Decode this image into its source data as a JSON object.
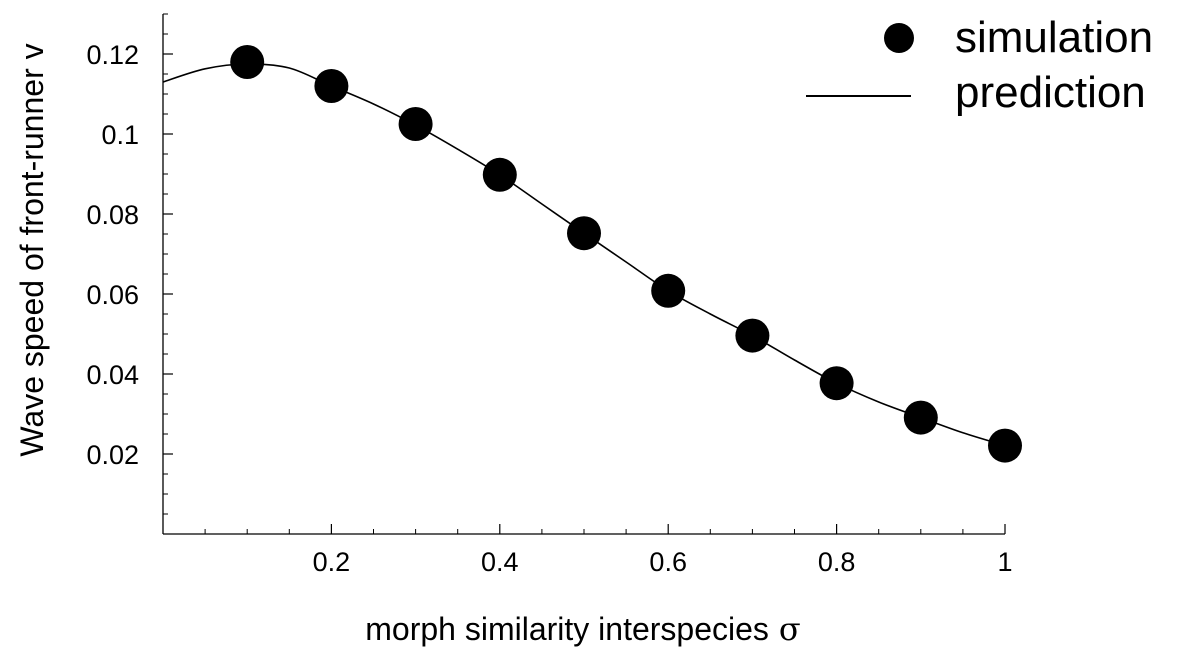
{
  "chart_data": {
    "type": "scatter",
    "title": "",
    "xlabel": "morph similarity interspecies",
    "xlabel_symbol": "σ",
    "ylabel": "Wave speed of front-runner v",
    "xlim": [
      0,
      1
    ],
    "ylim": [
      0,
      0.13
    ],
    "x_ticks": [
      {
        "value": 0.2,
        "label": "0.2"
      },
      {
        "value": 0.4,
        "label": "0.4"
      },
      {
        "value": 0.6,
        "label": "0.6"
      },
      {
        "value": 0.8,
        "label": "0.8"
      },
      {
        "value": 1.0,
        "label": "1"
      }
    ],
    "x_minor_step": 0.05,
    "y_ticks": [
      {
        "value": 0.02,
        "label": "0.02"
      },
      {
        "value": 0.04,
        "label": "0.04"
      },
      {
        "value": 0.06,
        "label": "0.06"
      },
      {
        "value": 0.08,
        "label": "0.08"
      },
      {
        "value": 0.1,
        "label": "0.1"
      },
      {
        "value": 0.12,
        "label": "0.12"
      }
    ],
    "y_minor_step": 0.005,
    "grid": false,
    "legend": {
      "position": "top-right",
      "entries": [
        {
          "label": "simulation",
          "marker": "circle"
        },
        {
          "label": "prediction",
          "marker": "line"
        }
      ]
    },
    "series": [
      {
        "name": "simulation",
        "kind": "scatter",
        "color": "#000000",
        "points": [
          {
            "x": 0.1,
            "y": 0.118
          },
          {
            "x": 0.2,
            "y": 0.112
          },
          {
            "x": 0.3,
            "y": 0.1025
          },
          {
            "x": 0.4,
            "y": 0.0898
          },
          {
            "x": 0.5,
            "y": 0.0752
          },
          {
            "x": 0.6,
            "y": 0.0608
          },
          {
            "x": 0.7,
            "y": 0.0496
          },
          {
            "x": 0.8,
            "y": 0.0377
          },
          {
            "x": 0.9,
            "y": 0.0291
          },
          {
            "x": 1.0,
            "y": 0.0221
          }
        ]
      },
      {
        "name": "prediction",
        "kind": "line",
        "color": "#000000",
        "points": [
          {
            "x": 0.0,
            "y": 0.113
          },
          {
            "x": 0.05,
            "y": 0.1163
          },
          {
            "x": 0.1,
            "y": 0.1175
          },
          {
            "x": 0.15,
            "y": 0.1165
          },
          {
            "x": 0.2,
            "y": 0.112
          },
          {
            "x": 0.25,
            "y": 0.1075
          },
          {
            "x": 0.3,
            "y": 0.1022
          },
          {
            "x": 0.35,
            "y": 0.0962
          },
          {
            "x": 0.4,
            "y": 0.0898
          },
          {
            "x": 0.45,
            "y": 0.0825
          },
          {
            "x": 0.5,
            "y": 0.0752
          },
          {
            "x": 0.55,
            "y": 0.068
          },
          {
            "x": 0.6,
            "y": 0.0608
          },
          {
            "x": 0.65,
            "y": 0.055
          },
          {
            "x": 0.7,
            "y": 0.0496
          },
          {
            "x": 0.75,
            "y": 0.0435
          },
          {
            "x": 0.8,
            "y": 0.0377
          },
          {
            "x": 0.85,
            "y": 0.033
          },
          {
            "x": 0.9,
            "y": 0.0291
          },
          {
            "x": 0.95,
            "y": 0.0253
          },
          {
            "x": 1.0,
            "y": 0.0221
          }
        ]
      }
    ]
  }
}
